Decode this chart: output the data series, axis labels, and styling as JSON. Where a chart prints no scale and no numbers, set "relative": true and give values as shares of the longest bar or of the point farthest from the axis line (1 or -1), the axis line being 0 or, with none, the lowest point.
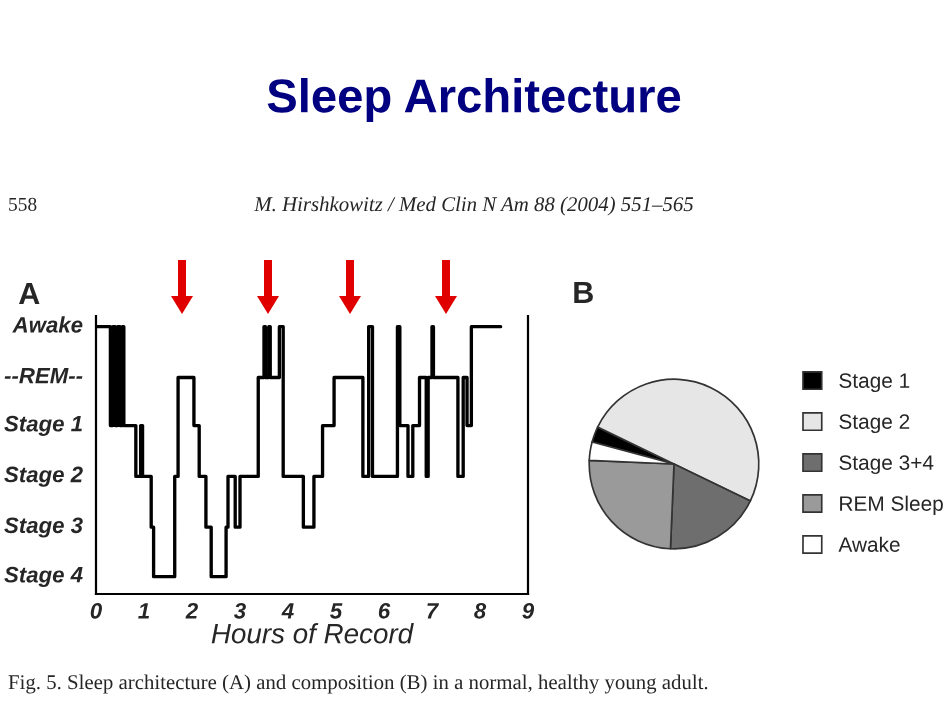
{
  "chart_data": [
    {
      "type": "step",
      "title": "A",
      "xlabel": "Hours of Record",
      "relative": true,
      "annotations": [
        "Sleep Architecture",
        "558",
        "M. Hirshkowitz / Med Clin N Am 88 (2004) 551–565",
        "Fig. 5. Sleep architecture (A) and composition (B) in a normal, healthy young adult.",
        "Awake",
        "--REM--",
        "Stage 1",
        "Stage 2",
        "Stage 3",
        "Stage 4"
      ],
      "x": [
        0,
        0.3,
        0.35,
        0.4,
        0.45,
        0.5,
        0.55,
        0.58,
        0.83,
        0.93,
        0.97,
        1.15,
        1.2,
        1.64,
        1.71,
        2.04,
        2.15,
        2.29,
        2.4,
        2.71,
        2.75,
        2.9,
        3.0,
        3.38,
        3.5,
        3.53,
        3.6,
        3.63,
        3.82,
        3.9,
        4.32,
        4.54,
        4.72,
        4.96,
        5.56,
        5.68,
        5.76,
        6.28,
        6.33,
        6.5,
        6.6,
        6.74,
        6.88,
        6.92,
        7.0,
        7.03,
        7.54,
        7.65,
        7.73,
        7.82,
        8.43
      ],
      "series": [
        {
          "color": "#000000",
          "values": [
            1,
            0.63,
            1,
            0.63,
            1,
            0.63,
            1,
            0.63,
            0.44,
            0.63,
            0.44,
            0.25,
            0.065,
            0.44,
            0.81,
            0.63,
            0.44,
            0.25,
            0.065,
            0.25,
            0.44,
            0.25,
            0.44,
            0.81,
            1,
            0.81,
            1,
            0.81,
            1,
            0.44,
            0.25,
            0.44,
            0.63,
            0.81,
            0.44,
            1,
            0.44,
            1,
            0.63,
            0.44,
            0.63,
            0.81,
            0.44,
            0.81,
            1,
            0.81,
            0.44,
            0.81,
            0.63,
            1,
            1
          ]
        }
      ],
      "xlim": [
        0,
        9
      ],
      "xticks": [
        0,
        1,
        2,
        3,
        4,
        5,
        6,
        7,
        8,
        9
      ],
      "grid": false,
      "legend": false
    },
    {
      "type": "pie",
      "title": "B",
      "categories": [
        "Stage 1",
        "Stage 2",
        "Stage 3+4",
        "REM Sleep",
        "Awake"
      ],
      "values": [
        3,
        50,
        18.5,
        25,
        3.5
      ],
      "colors": [
        "#000000",
        "#e6e6e6",
        "#6e6e6e",
        "#9a9a9a",
        "#ffffff"
      ],
      "legend": "right"
    }
  ]
}
